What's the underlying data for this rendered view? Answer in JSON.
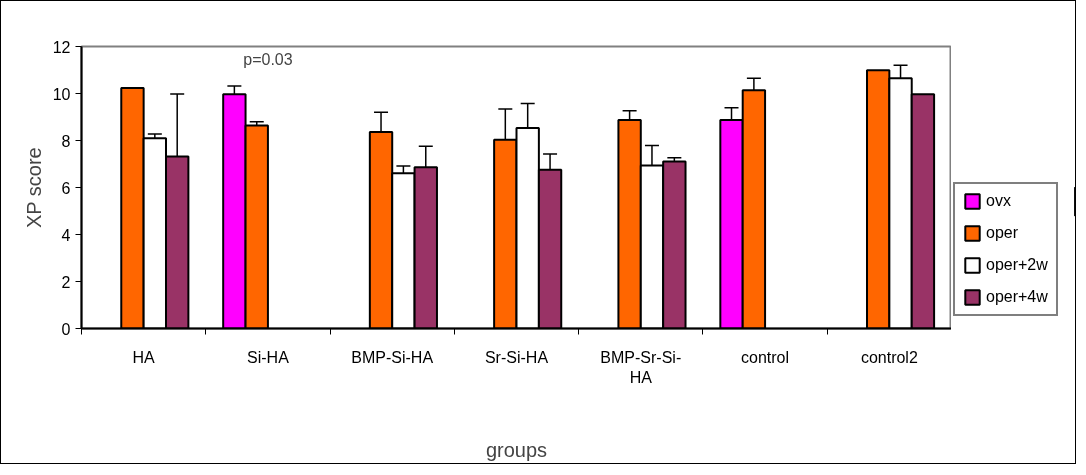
{
  "chart_data": {
    "type": "bar",
    "xlabel": "groups",
    "ylabel": "XP score",
    "categories": [
      "HA",
      "Si-HA",
      "BMP-Si-HA",
      "Sr-Si-HA",
      "BMP-Sr-Si-HA",
      "control",
      "control2"
    ],
    "series": [
      {
        "name": "ovx",
        "color": "#ff00ff",
        "values": [
          null,
          9.97,
          null,
          null,
          null,
          8.87,
          null
        ],
        "errors": [
          null,
          0.35,
          null,
          null,
          null,
          0.52,
          null
        ]
      },
      {
        "name": "oper",
        "color": "#ff6600",
        "values": [
          10.23,
          8.64,
          8.36,
          8.03,
          8.87,
          10.14,
          10.99
        ],
        "errors": [
          null,
          0.16,
          0.84,
          1.31,
          0.4,
          0.51,
          null
        ]
      },
      {
        "name": "oper+2w",
        "color": "#ffffff",
        "values": [
          8.1,
          null,
          6.61,
          8.53,
          6.94,
          null,
          10.65
        ],
        "errors": [
          0.18,
          null,
          0.3,
          1.04,
          0.85,
          null,
          0.55
        ]
      },
      {
        "name": "oper+4w",
        "color": "#993366",
        "values": [
          7.32,
          null,
          6.86,
          6.76,
          7.11,
          null,
          9.97
        ],
        "errors": [
          2.66,
          null,
          0.9,
          0.67,
          0.16,
          null,
          null
        ]
      }
    ],
    "ylim": [
      0,
      12
    ],
    "yticks": [
      0,
      2,
      4,
      6,
      8,
      10,
      12
    ],
    "grid": false,
    "legend": "right",
    "annotations": [
      "p=0.03"
    ]
  }
}
